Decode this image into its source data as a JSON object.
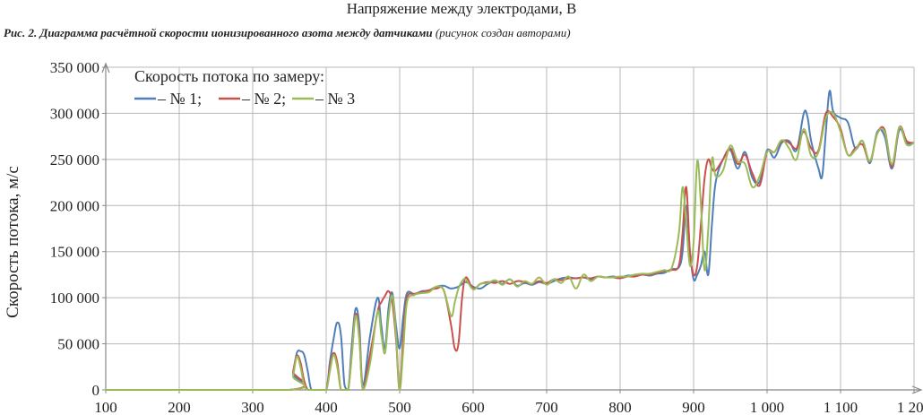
{
  "header": {
    "top_title": "Напряжение между электродами, В",
    "caption_main": "Рис. 2. Диаграмма расчётной скорости ионизированного азота между датчиками",
    "caption_note": "(рисунок создан авторами)"
  },
  "chart_data": {
    "type": "line",
    "title": "",
    "xlabel": "",
    "ylabel": "Скорость потока, м/с",
    "xlim": [
      100,
      1200
    ],
    "ylim": [
      0,
      350000
    ],
    "x_ticks": [
      100,
      200,
      300,
      400,
      500,
      600,
      700,
      800,
      900,
      1000,
      1100,
      1200
    ],
    "y_ticks": [
      0,
      50000,
      100000,
      150000,
      200000,
      250000,
      300000,
      350000
    ],
    "x_tick_labels": [
      "100",
      "200",
      "300",
      "400",
      "500",
      "600",
      "700",
      "800",
      "900",
      "1 000",
      "1 100",
      "1 200"
    ],
    "y_tick_labels": [
      "0",
      "50 000",
      "100 000",
      "150 000",
      "200 000",
      "250 000",
      "300 000",
      "350 000"
    ],
    "grid": true,
    "legend": {
      "title": "Скорость потока по замеру:",
      "placement": "top-left",
      "labels": [
        "– № 1;",
        "– № 2;",
        "– № 3"
      ]
    },
    "series": [
      {
        "name": "№ 1",
        "color": "#4f7fb8",
        "x": [
          100,
          350,
          355,
          360,
          365,
          370,
          375,
          380,
          390,
          400,
          405,
          410,
          415,
          420,
          425,
          430,
          435,
          440,
          445,
          450,
          460,
          470,
          475,
          480,
          485,
          490,
          495,
          500,
          505,
          510,
          520,
          530,
          540,
          550,
          560,
          570,
          580,
          590,
          600,
          610,
          620,
          630,
          640,
          650,
          660,
          670,
          680,
          690,
          700,
          710,
          720,
          730,
          740,
          750,
          760,
          770,
          780,
          790,
          800,
          810,
          820,
          830,
          840,
          850,
          860,
          870,
          880,
          885,
          890,
          895,
          900,
          905,
          910,
          915,
          920,
          925,
          930,
          940,
          950,
          960,
          970,
          980,
          990,
          1000,
          1010,
          1020,
          1030,
          1040,
          1050,
          1055,
          1060,
          1070,
          1075,
          1080,
          1085,
          1090,
          1100,
          1110,
          1120,
          1130,
          1140,
          1150,
          1160,
          1170,
          1180,
          1190,
          1200
        ],
        "y": [
          0,
          0,
          18000,
          40000,
          42000,
          38000,
          20000,
          0,
          0,
          0,
          30000,
          55000,
          73000,
          60000,
          5000,
          0,
          50000,
          88000,
          70000,
          5000,
          60000,
          100000,
          70000,
          45000,
          90000,
          105000,
          70000,
          45000,
          80000,
          105000,
          104000,
          107000,
          108000,
          112000,
          113000,
          110000,
          112000,
          117000,
          112000,
          110000,
          115000,
          118000,
          115000,
          120000,
          113000,
          116000,
          114000,
          117000,
          115000,
          118000,
          121000,
          122000,
          121000,
          122000,
          120000,
          123000,
          122000,
          123000,
          122000,
          124000,
          124000,
          125000,
          124000,
          126000,
          127000,
          131000,
          133000,
          150000,
          200000,
          150000,
          120000,
          125000,
          135000,
          150000,
          125000,
          180000,
          225000,
          250000,
          260000,
          240000,
          258000,
          230000,
          226000,
          260000,
          252000,
          268000,
          270000,
          260000,
          300000,
          296000,
          270000,
          240000,
          232000,
          280000,
          324000,
          302000,
          295000,
          290000,
          262000,
          270000,
          246000,
          280000,
          275000,
          240000,
          282000,
          268000,
          268000
        ]
      },
      {
        "name": "№ 2",
        "color": "#c9504d",
        "x": [
          100,
          350,
          355,
          360,
          365,
          370,
          375,
          380,
          390,
          400,
          405,
          410,
          415,
          420,
          425,
          430,
          435,
          440,
          445,
          450,
          460,
          470,
          475,
          480,
          485,
          490,
          495,
          500,
          505,
          510,
          520,
          530,
          540,
          550,
          560,
          570,
          575,
          580,
          585,
          590,
          600,
          610,
          620,
          630,
          640,
          650,
          660,
          670,
          680,
          690,
          700,
          710,
          720,
          730,
          740,
          750,
          760,
          770,
          780,
          790,
          800,
          810,
          820,
          830,
          840,
          850,
          860,
          870,
          880,
          885,
          890,
          895,
          900,
          905,
          910,
          915,
          920,
          925,
          930,
          940,
          950,
          960,
          970,
          980,
          990,
          1000,
          1010,
          1020,
          1030,
          1040,
          1050,
          1060,
          1070,
          1080,
          1090,
          1100,
          1110,
          1120,
          1130,
          1140,
          1150,
          1160,
          1170,
          1180,
          1190,
          1200
        ],
        "y": [
          0,
          0,
          20000,
          37000,
          30000,
          10000,
          0,
          0,
          0,
          0,
          25000,
          40000,
          30000,
          0,
          0,
          0,
          40000,
          82000,
          60000,
          0,
          40000,
          85000,
          95000,
          102000,
          107000,
          95000,
          55000,
          0,
          60000,
          100000,
          104000,
          106000,
          108000,
          110000,
          108000,
          70000,
          45000,
          50000,
          100000,
          122000,
          110000,
          115000,
          117000,
          116000,
          118000,
          115000,
          118000,
          117000,
          115000,
          118000,
          116000,
          120000,
          119000,
          121000,
          121000,
          122000,
          121000,
          123000,
          122000,
          122000,
          121000,
          123000,
          123000,
          125000,
          125000,
          127000,
          129000,
          130000,
          135000,
          170000,
          220000,
          150000,
          125000,
          135000,
          180000,
          230000,
          250000,
          240000,
          238000,
          250000,
          262000,
          245000,
          255000,
          235000,
          222000,
          258000,
          258000,
          270000,
          268000,
          262000,
          280000,
          262000,
          260000,
          300000,
          296000,
          283000,
          255000,
          262000,
          266000,
          248000,
          278000,
          282000,
          242000,
          285000,
          270000,
          268000
        ]
      },
      {
        "name": "№ 3",
        "color": "#9bbb59",
        "x": [
          100,
          350,
          355,
          360,
          365,
          370,
          375,
          380,
          390,
          400,
          405,
          410,
          415,
          420,
          425,
          430,
          435,
          440,
          445,
          450,
          460,
          470,
          475,
          480,
          485,
          490,
          495,
          500,
          505,
          510,
          520,
          530,
          540,
          550,
          560,
          570,
          575,
          580,
          585,
          590,
          600,
          610,
          620,
          630,
          640,
          650,
          660,
          670,
          680,
          690,
          700,
          710,
          720,
          730,
          740,
          750,
          760,
          770,
          780,
          790,
          800,
          810,
          820,
          830,
          840,
          850,
          860,
          870,
          880,
          885,
          890,
          895,
          900,
          905,
          910,
          915,
          920,
          925,
          930,
          940,
          950,
          960,
          970,
          980,
          990,
          1000,
          1010,
          1020,
          1030,
          1040,
          1050,
          1060,
          1070,
          1080,
          1090,
          1100,
          1110,
          1120,
          1130,
          1140,
          1150,
          1160,
          1170,
          1180,
          1190,
          1200
        ],
        "y": [
          0,
          0,
          15000,
          36000,
          25000,
          5000,
          0,
          0,
          0,
          0,
          20000,
          38000,
          25000,
          0,
          0,
          0,
          38000,
          80000,
          55000,
          0,
          30000,
          85000,
          60000,
          40000,
          80000,
          102000,
          60000,
          0,
          45000,
          95000,
          103000,
          105000,
          106000,
          112000,
          108000,
          80000,
          95000,
          110000,
          118000,
          120000,
          109000,
          115000,
          116000,
          119000,
          114000,
          120000,
          112000,
          118000,
          115000,
          122000,
          114000,
          120000,
          116000,
          123000,
          110000,
          125000,
          118000,
          123000,
          122000,
          122000,
          123000,
          123000,
          125000,
          126000,
          126000,
          128000,
          130000,
          132000,
          170000,
          220000,
          180000,
          135000,
          160000,
          248000,
          200000,
          130000,
          175000,
          250000,
          232000,
          238000,
          265000,
          248000,
          245000,
          220000,
          232000,
          258000,
          258000,
          271000,
          262000,
          250000,
          283000,
          254000,
          258000,
          295000,
          300000,
          280000,
          255000,
          260000,
          270000,
          248000,
          278000,
          280000,
          245000,
          285000,
          266000,
          268000
        ]
      }
    ]
  }
}
